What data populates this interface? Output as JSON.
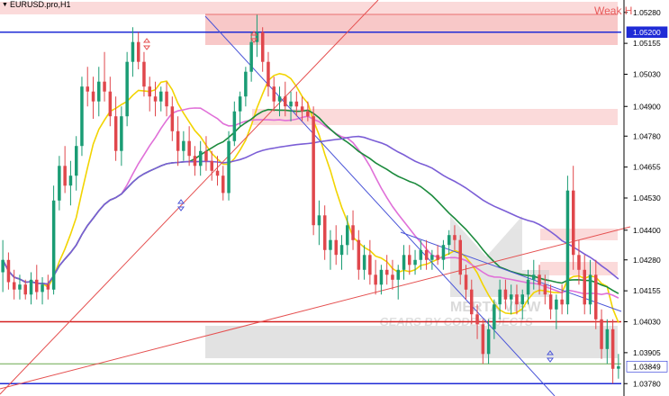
{
  "header": {
    "symbol": "EURUSD.pro,H1",
    "weak_zone_label": "Weak H"
  },
  "watermark": {
    "line1": "MERTA VIEW",
    "line2": "GEARS BY CODEOBJECTS"
  },
  "chart_data": {
    "type": "candlestick",
    "timeframe": "H1",
    "y_axis": {
      "ticks": [
        "1.05280",
        "1.05155",
        "1.05030",
        "1.04900",
        "1.04780",
        "1.04655",
        "1.04530",
        "1.04400",
        "1.04280",
        "1.04155",
        "1.04030",
        "1.03905",
        "1.03780"
      ],
      "range": [
        1.0373,
        1.0533
      ]
    },
    "price_labels": {
      "blue_level": "1.05200",
      "current": "1.03849"
    },
    "levels": {
      "blue_top": 1.052,
      "blue_bottom": 1.0378,
      "red_line": 1.0403,
      "green_line": 1.0386,
      "grey_zone": [
        1.0393,
        1.0403
      ],
      "weak_high_zone": [
        1.0521,
        1.0532
      ],
      "red_zone_mid": [
        1.0488,
        1.0495
      ],
      "red_zone_right": [
        1.0424,
        1.0431
      ]
    },
    "candles": [
      [
        1.0423,
        1.0436,
        1.0415,
        1.0428
      ],
      [
        1.0428,
        1.0431,
        1.0416,
        1.0419
      ],
      [
        1.0419,
        1.0424,
        1.0412,
        1.0416
      ],
      [
        1.0416,
        1.0422,
        1.0412,
        1.0418
      ],
      [
        1.0418,
        1.042,
        1.0412,
        1.0414
      ],
      [
        1.0414,
        1.0423,
        1.041,
        1.042
      ],
      [
        1.042,
        1.0426,
        1.0412,
        1.0415
      ],
      [
        1.0415,
        1.0421,
        1.041,
        1.0418
      ],
      [
        1.0418,
        1.0422,
        1.0412,
        1.0416
      ],
      [
        1.0416,
        1.0458,
        1.0414,
        1.0452
      ],
      [
        1.0452,
        1.047,
        1.0448,
        1.0466
      ],
      [
        1.0466,
        1.0474,
        1.0455,
        1.0458
      ],
      [
        1.0458,
        1.0468,
        1.045,
        1.0462
      ],
      [
        1.0462,
        1.0478,
        1.0456,
        1.0474
      ],
      [
        1.0474,
        1.0502,
        1.047,
        1.0498
      ],
      [
        1.0498,
        1.0506,
        1.049,
        1.0496
      ],
      [
        1.0496,
        1.0502,
        1.0485,
        1.0492
      ],
      [
        1.0492,
        1.0506,
        1.0486,
        1.05
      ],
      [
        1.05,
        1.0512,
        1.0492,
        1.0496
      ],
      [
        1.0496,
        1.0502,
        1.0482,
        1.0486
      ],
      [
        1.0486,
        1.0494,
        1.0468,
        1.0472
      ],
      [
        1.0472,
        1.049,
        1.0466,
        1.0486
      ],
      [
        1.0486,
        1.0512,
        1.0482,
        1.0508
      ],
      [
        1.0508,
        1.0522,
        1.0502,
        1.0516
      ],
      [
        1.0516,
        1.052,
        1.0505,
        1.0508
      ],
      [
        1.0508,
        1.0512,
        1.0494,
        1.0498
      ],
      [
        1.0498,
        1.0502,
        1.0488,
        1.0494
      ],
      [
        1.0494,
        1.05,
        1.0486,
        1.0492
      ],
      [
        1.0492,
        1.0498,
        1.0488,
        1.0496
      ],
      [
        1.0496,
        1.05,
        1.0486,
        1.049
      ],
      [
        1.049,
        1.0494,
        1.0476,
        1.048
      ],
      [
        1.048,
        1.0486,
        1.0466,
        1.0472
      ],
      [
        1.0472,
        1.048,
        1.0468,
        1.0476
      ],
      [
        1.0476,
        1.0482,
        1.0466,
        1.047
      ],
      [
        1.047,
        1.0474,
        1.0462,
        1.0466
      ],
      [
        1.0466,
        1.0476,
        1.0462,
        1.0472
      ],
      [
        1.0472,
        1.0478,
        1.0464,
        1.0468
      ],
      [
        1.0468,
        1.0472,
        1.046,
        1.0464
      ],
      [
        1.0464,
        1.047,
        1.0458,
        1.0462
      ],
      [
        1.0462,
        1.0466,
        1.0452,
        1.0455
      ],
      [
        1.0455,
        1.048,
        1.0452,
        1.0476
      ],
      [
        1.0476,
        1.0492,
        1.0474,
        1.0488
      ],
      [
        1.0488,
        1.0496,
        1.0482,
        1.0494
      ],
      [
        1.0494,
        1.0506,
        1.049,
        1.0504
      ],
      [
        1.0504,
        1.052,
        1.05,
        1.0516
      ],
      [
        1.0516,
        1.0527,
        1.051,
        1.052
      ],
      [
        1.052,
        1.0522,
        1.0504,
        1.0508
      ],
      [
        1.0508,
        1.0512,
        1.0494,
        1.0498
      ],
      [
        1.0498,
        1.0502,
        1.0488,
        1.0492
      ],
      [
        1.0492,
        1.0498,
        1.0486,
        1.0494
      ],
      [
        1.0494,
        1.05,
        1.0486,
        1.049
      ],
      [
        1.049,
        1.0496,
        1.0484,
        1.0492
      ],
      [
        1.0492,
        1.0496,
        1.0486,
        1.049
      ],
      [
        1.049,
        1.0494,
        1.0484,
        1.0488
      ],
      [
        1.0488,
        1.0492,
        1.0484,
        1.0486
      ],
      [
        1.0486,
        1.049,
        1.0438,
        1.0442
      ],
      [
        1.0442,
        1.0452,
        1.0434,
        1.0446
      ],
      [
        1.0446,
        1.045,
        1.0428,
        1.0432
      ],
      [
        1.0432,
        1.044,
        1.0424,
        1.0436
      ],
      [
        1.0436,
        1.0442,
        1.0426,
        1.043
      ],
      [
        1.043,
        1.0438,
        1.0424,
        1.0434
      ],
      [
        1.0434,
        1.0446,
        1.043,
        1.0442
      ],
      [
        1.0442,
        1.0448,
        1.0432,
        1.0436
      ],
      [
        1.0436,
        1.044,
        1.042,
        1.0424
      ],
      [
        1.0424,
        1.0434,
        1.042,
        1.043
      ],
      [
        1.043,
        1.0436,
        1.0418,
        1.0422
      ],
      [
        1.0422,
        1.0428,
        1.0414,
        1.0418
      ],
      [
        1.0418,
        1.0426,
        1.0414,
        1.0424
      ],
      [
        1.0424,
        1.043,
        1.0418,
        1.0422
      ],
      [
        1.0422,
        1.0428,
        1.0416,
        1.042
      ],
      [
        1.042,
        1.0426,
        1.0412,
        1.0424
      ],
      [
        1.0424,
        1.0434,
        1.042,
        1.043
      ],
      [
        1.043,
        1.0434,
        1.0422,
        1.0426
      ],
      [
        1.0426,
        1.0432,
        1.0422,
        1.0428
      ],
      [
        1.0428,
        1.0436,
        1.0424,
        1.0432
      ],
      [
        1.0432,
        1.0436,
        1.0424,
        1.0428
      ],
      [
        1.0428,
        1.0432,
        1.0424,
        1.043
      ],
      [
        1.043,
        1.0434,
        1.0426,
        1.0428
      ],
      [
        1.0428,
        1.0436,
        1.0424,
        1.0434
      ],
      [
        1.0434,
        1.044,
        1.043,
        1.0438
      ],
      [
        1.0438,
        1.0442,
        1.0432,
        1.0436
      ],
      [
        1.0436,
        1.0438,
        1.0418,
        1.0422
      ],
      [
        1.0422,
        1.0426,
        1.0412,
        1.0416
      ],
      [
        1.0416,
        1.042,
        1.0402,
        1.0406
      ],
      [
        1.0406,
        1.041,
        1.0396,
        1.0402
      ],
      [
        1.0402,
        1.0404,
        1.0386,
        1.039
      ],
      [
        1.039,
        1.0404,
        1.0386,
        1.04
      ],
      [
        1.04,
        1.0412,
        1.0396,
        1.041
      ],
      [
        1.041,
        1.042,
        1.0404,
        1.0416
      ],
      [
        1.0416,
        1.042,
        1.0408,
        1.0412
      ],
      [
        1.0412,
        1.0418,
        1.0406,
        1.0414
      ],
      [
        1.0414,
        1.0418,
        1.0406,
        1.041
      ],
      [
        1.041,
        1.0416,
        1.0404,
        1.0414
      ],
      [
        1.0414,
        1.0424,
        1.041,
        1.042
      ],
      [
        1.042,
        1.0428,
        1.0416,
        1.0422
      ],
      [
        1.0422,
        1.0426,
        1.0414,
        1.0418
      ],
      [
        1.0418,
        1.0422,
        1.041,
        1.0414
      ],
      [
        1.0414,
        1.0418,
        1.0404,
        1.0408
      ],
      [
        1.0408,
        1.0414,
        1.04,
        1.0412
      ],
      [
        1.0412,
        1.0418,
        1.0406,
        1.041
      ],
      [
        1.041,
        1.0462,
        1.0406,
        1.0456
      ],
      [
        1.0456,
        1.0466,
        1.0424,
        1.043
      ],
      [
        1.043,
        1.0436,
        1.0418,
        1.0424
      ],
      [
        1.0424,
        1.043,
        1.0406,
        1.041
      ],
      [
        1.041,
        1.0428,
        1.0406,
        1.0422
      ],
      [
        1.0422,
        1.0428,
        1.04,
        1.0404
      ],
      [
        1.0404,
        1.0408,
        1.0388,
        1.0392
      ],
      [
        1.0392,
        1.0404,
        1.0386,
        1.04
      ],
      [
        1.04,
        1.0404,
        1.0378,
        1.0384
      ],
      [
        1.0384,
        1.039,
        1.038,
        1.0385
      ]
    ]
  }
}
